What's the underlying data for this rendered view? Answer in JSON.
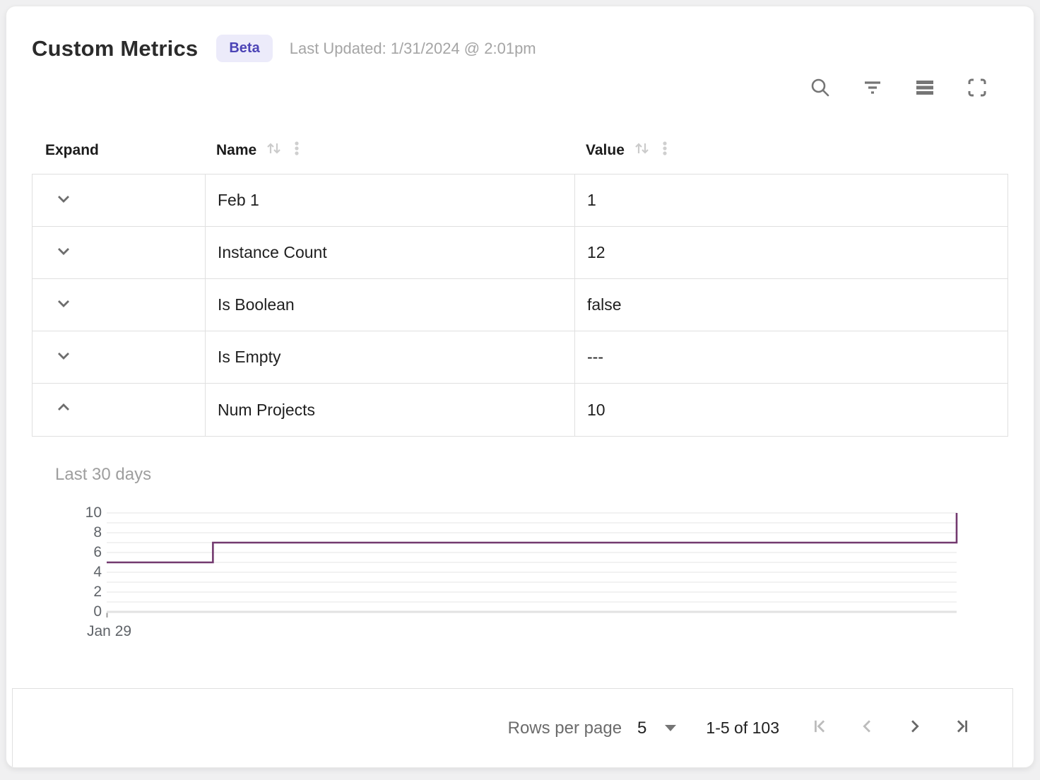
{
  "header": {
    "title": "Custom Metrics",
    "badge": "Beta",
    "last_updated": "Last Updated: 1/31/2024 @ 2:01pm"
  },
  "toolbar": {
    "icons": [
      "search",
      "filter",
      "density",
      "fullscreen"
    ]
  },
  "table": {
    "columns": [
      {
        "label": "Expand",
        "sortable": false
      },
      {
        "label": "Name",
        "sortable": true
      },
      {
        "label": "Value",
        "sortable": true
      }
    ],
    "rows": [
      {
        "name": "Feb 1",
        "value": "1",
        "expanded": false
      },
      {
        "name": "Instance Count",
        "value": "12",
        "expanded": false
      },
      {
        "name": "Is Boolean",
        "value": "false",
        "expanded": false
      },
      {
        "name": "Is Empty",
        "value": "---",
        "expanded": false
      },
      {
        "name": "Num Projects",
        "value": "10",
        "expanded": true
      }
    ]
  },
  "chart_data": {
    "type": "line",
    "subtype": "step",
    "title": "Last 30 days",
    "series_name": "Num Projects",
    "points": [
      {
        "x": 0,
        "y": 5
      },
      {
        "x": 0.125,
        "y": 5
      },
      {
        "x": 0.125,
        "y": 7
      },
      {
        "x": 1,
        "y": 7
      },
      {
        "x": 1,
        "y": 10
      }
    ],
    "ylim": [
      0,
      10
    ],
    "y_ticks": [
      0,
      2,
      4,
      6,
      8,
      10
    ],
    "grid_every": 1,
    "x_tick_labels": [
      "Jan 29"
    ],
    "line_color": "#73396f",
    "grid_color": "#ededed",
    "zero_line_color": "#e2e2e2",
    "legend": "none"
  },
  "pagination": {
    "rows_per_page_label": "Rows per page",
    "rows_per_page_value": "5",
    "range_label": "1-5 of 103",
    "first_disabled": true,
    "prev_disabled": true,
    "next_disabled": false,
    "last_disabled": false
  },
  "colors": {
    "accent_badge_bg": "#ecebfa",
    "accent_badge_text": "#4c44b6",
    "chart_line": "#73396f",
    "border": "#e0e0e0",
    "icon_gray": "#757575",
    "disabled_icon": "#bcbcbc"
  }
}
